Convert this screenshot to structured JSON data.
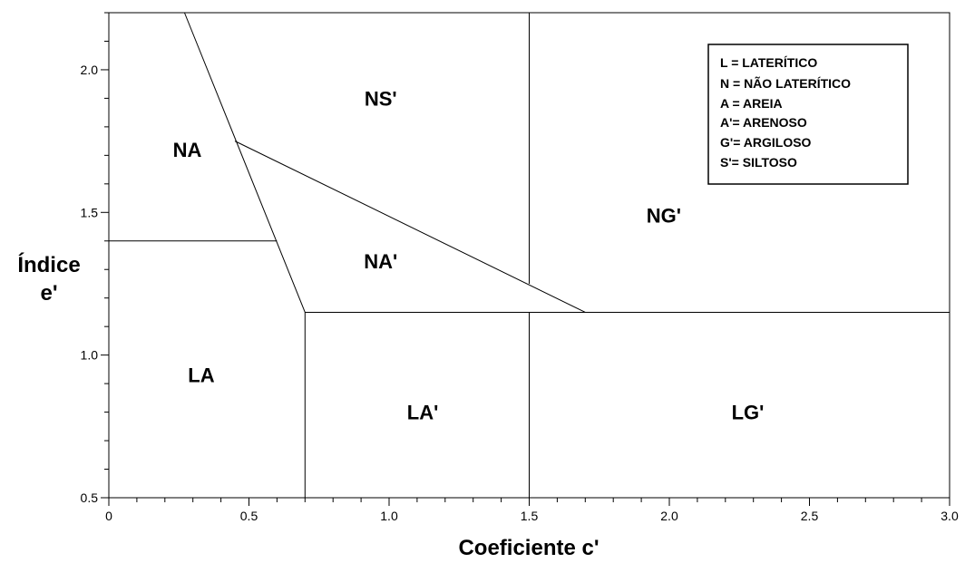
{
  "chart_data": {
    "type": "diagram",
    "xlabel": "Coeficiente c'",
    "ylabel_lines": [
      "Índice",
      "e'"
    ],
    "xlim": [
      0,
      3.0
    ],
    "ylim": [
      0.5,
      2.2
    ],
    "x_ticks": [
      {
        "value": 0,
        "label": "0"
      },
      {
        "value": 0.5,
        "label": "0.5"
      },
      {
        "value": 1.0,
        "label": "1.0"
      },
      {
        "value": 1.5,
        "label": "1.5"
      },
      {
        "value": 2.0,
        "label": "2.0"
      },
      {
        "value": 2.5,
        "label": "2.5"
      },
      {
        "value": 3.0,
        "label": "3.0"
      }
    ],
    "x_minor_step": 0.1,
    "y_ticks": [
      {
        "value": 0.5,
        "label": "0.5"
      },
      {
        "value": 1.0,
        "label": "1.0"
      },
      {
        "value": 1.5,
        "label": "1.5"
      },
      {
        "value": 2.0,
        "label": "2.0"
      }
    ],
    "y_minor_step": 0.1,
    "boundaries": [
      {
        "name": "NA-left-boundary",
        "points": [
          [
            0.27,
            2.2
          ],
          [
            0.7,
            1.15
          ]
        ]
      },
      {
        "name": "NA-LA-boundary",
        "points": [
          [
            0,
            1.4
          ],
          [
            0.6,
            1.4
          ]
        ]
      },
      {
        "name": "NS-NA-prime-boundary",
        "points": [
          [
            0.45,
            1.75
          ],
          [
            1.7,
            1.15
          ]
        ]
      },
      {
        "name": "e-1.15-boundary",
        "points": [
          [
            0.7,
            1.15
          ],
          [
            3.0,
            1.15
          ]
        ]
      },
      {
        "name": "c-0.7-boundary",
        "points": [
          [
            0.7,
            0.5
          ],
          [
            0.7,
            1.15
          ]
        ]
      },
      {
        "name": "c-1.5-lower-boundary",
        "points": [
          [
            1.5,
            0.5
          ],
          [
            1.5,
            1.15
          ]
        ]
      },
      {
        "name": "c-1.5-upper-boundary",
        "points": [
          [
            1.5,
            1.25
          ],
          [
            1.5,
            2.2
          ]
        ]
      }
    ],
    "regions": [
      {
        "label": "NA",
        "x": 0.28,
        "y": 1.72
      },
      {
        "label": "NS'",
        "x": 0.97,
        "y": 1.9
      },
      {
        "label": "NA'",
        "x": 0.97,
        "y": 1.33
      },
      {
        "label": "NG'",
        "x": 1.98,
        "y": 1.49
      },
      {
        "label": "LA",
        "x": 0.33,
        "y": 0.93
      },
      {
        "label": "LA'",
        "x": 1.12,
        "y": 0.8
      },
      {
        "label": "LG'",
        "x": 2.28,
        "y": 0.8
      }
    ],
    "legend": {
      "placement": "top-right",
      "entries": [
        "L = LATERÍTICO",
        "N = NÃO LATERÍTICO",
        "A = AREIA",
        "A'= ARENOSO",
        "G'= ARGILOSO",
        "S'= SILTOSO"
      ]
    },
    "colors": {
      "line": "#000000",
      "background": "#ffffff"
    }
  }
}
